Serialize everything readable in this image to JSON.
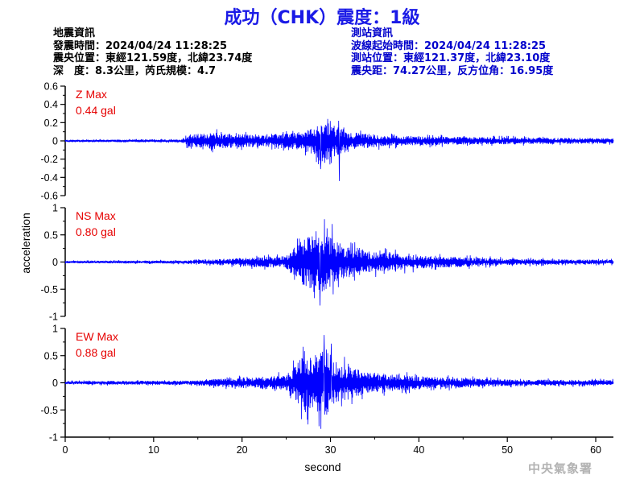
{
  "header": {
    "title": "成功（CHK）震度：1級",
    "earthquake_info": [
      "地震資訊",
      "發震時間：2024/04/24 11:28:25",
      "震央位置：東經121.59度，北緯23.74度",
      "深　度：8.3公里，芮氏規模：4.7"
    ],
    "station_info": [
      "測站資訊",
      "波線起始時間：2024/04/24 11:28:25",
      "測站位置：東經121.37度，北緯23.10度",
      "震央距：74.27公里，反方位角：16.95度"
    ]
  },
  "footer": {
    "credit": "中央氣象署"
  },
  "colors": {
    "title": "#1a1ae6",
    "trace": "#0000ff",
    "max_label": "#e60000",
    "station_info": "#0000cc",
    "credit": "#b3b3b3"
  },
  "chart_data": [
    {
      "type": "line",
      "name": "Z",
      "label": "Z Max",
      "max_text": "0.44 gal",
      "ylim": [
        -0.6,
        0.6
      ],
      "yticks": [
        -0.6,
        -0.4,
        -0.2,
        0,
        0.2,
        0.4,
        0.6
      ],
      "ytick_labels": [
        "-0.6",
        "-0.4",
        "-0.2",
        "0",
        "0.2",
        "0.4",
        "0.6"
      ],
      "xlim": [
        0,
        62
      ],
      "envelope": [
        [
          0,
          0.012
        ],
        [
          13,
          0.015
        ],
        [
          14,
          0.07
        ],
        [
          17,
          0.09
        ],
        [
          22,
          0.06
        ],
        [
          27,
          0.1
        ],
        [
          29.5,
          0.22
        ],
        [
          32,
          0.1
        ],
        [
          36,
          0.06
        ],
        [
          45,
          0.04
        ],
        [
          62,
          0.03
        ]
      ],
      "peaks": [
        [
          29.7,
          0.24
        ],
        [
          31.0,
          -0.44
        ],
        [
          28.9,
          -0.31
        ]
      ]
    },
    {
      "type": "line",
      "name": "NS",
      "label": "NS Max",
      "max_text": "0.80 gal",
      "ylim": [
        -1,
        1
      ],
      "yticks": [
        -1,
        -0.5,
        0,
        0.5,
        1
      ],
      "ytick_labels": [
        "-1",
        "-0.5",
        "0",
        "0.5",
        "1"
      ],
      "xlim": [
        0,
        62
      ],
      "envelope": [
        [
          0,
          0.02
        ],
        [
          14,
          0.03
        ],
        [
          18,
          0.06
        ],
        [
          25,
          0.12
        ],
        [
          27,
          0.45
        ],
        [
          29.5,
          0.55
        ],
        [
          31,
          0.35
        ],
        [
          34,
          0.2
        ],
        [
          40,
          0.12
        ],
        [
          50,
          0.06
        ],
        [
          62,
          0.04
        ]
      ],
      "peaks": [
        [
          28.8,
          -0.8
        ],
        [
          30.2,
          0.7
        ],
        [
          29.6,
          0.62
        ]
      ]
    },
    {
      "type": "line",
      "name": "EW",
      "label": "EW Max",
      "max_text": "0.88 gal",
      "ylim": [
        -1,
        1
      ],
      "yticks": [
        -1,
        -0.5,
        0,
        0.5,
        1
      ],
      "ytick_labels": [
        "-1",
        "-0.5",
        "0",
        "0.5",
        "1"
      ],
      "xlim": [
        0,
        62
      ],
      "envelope": [
        [
          0,
          0.03
        ],
        [
          14,
          0.04
        ],
        [
          18,
          0.08
        ],
        [
          25,
          0.14
        ],
        [
          27,
          0.5
        ],
        [
          29.5,
          0.6
        ],
        [
          31,
          0.35
        ],
        [
          34,
          0.2
        ],
        [
          40,
          0.12
        ],
        [
          50,
          0.06
        ],
        [
          62,
          0.05
        ]
      ],
      "peaks": [
        [
          29.3,
          0.88
        ],
        [
          28.7,
          -0.8
        ],
        [
          30.1,
          0.72
        ]
      ]
    }
  ],
  "axes": {
    "xlabel": "second",
    "ylabel": "acceleration",
    "xticks": [
      0,
      10,
      20,
      30,
      40,
      50,
      60
    ],
    "xtick_labels": [
      "0",
      "10",
      "20",
      "30",
      "40",
      "50",
      "60"
    ]
  }
}
